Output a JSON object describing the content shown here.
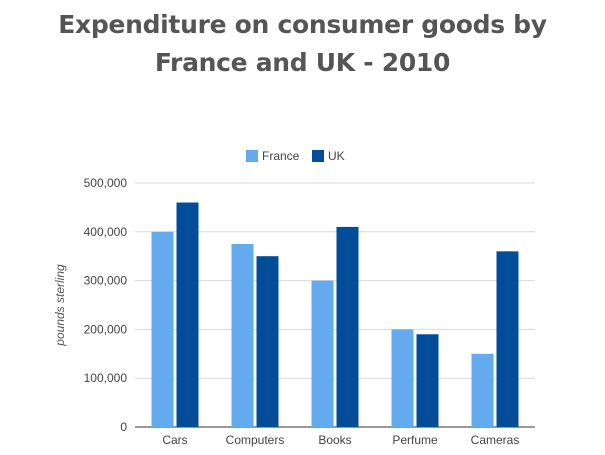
{
  "chart_data": {
    "type": "bar",
    "title_lines": [
      "Expenditure on consumer goods by",
      "France and UK - 2010"
    ],
    "xlabel": "",
    "ylabel": "pounds sterling",
    "categories": [
      "Cars",
      "Computers",
      "Books",
      "Perfume",
      "Cameras"
    ],
    "series": [
      {
        "name": "France",
        "color": "#64aaee",
        "values": [
          400000,
          375000,
          300000,
          200000,
          150000
        ]
      },
      {
        "name": "UK",
        "color": "#004d99",
        "values": [
          460000,
          350000,
          410000,
          190000,
          360000
        ]
      }
    ],
    "ylim": [
      0,
      500000
    ],
    "yticks": [
      0,
      100000,
      200000,
      300000,
      400000,
      500000
    ],
    "ytick_labels": [
      "0",
      "100,000",
      "200,000",
      "300,000",
      "400,000",
      "500,000"
    ],
    "grid": true,
    "legend_position": "top"
  }
}
